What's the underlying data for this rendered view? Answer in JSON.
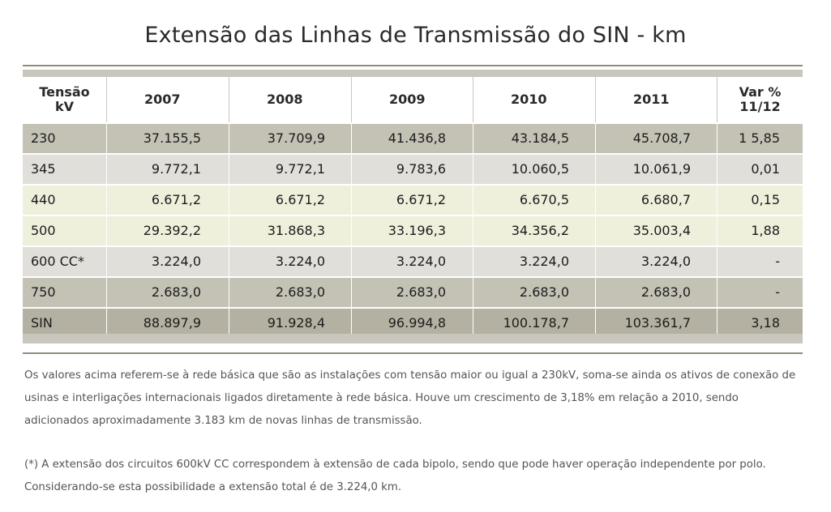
{
  "title": "Extensão das Linhas de Transmissão do SIN - km",
  "table": {
    "headers": [
      "Tensão kV",
      "2007",
      "2008",
      "2009",
      "2010",
      "2011",
      "Var % 11/12"
    ],
    "header_first": [
      "Tensão",
      "kV"
    ],
    "header_last": [
      "Var %",
      "11/12"
    ],
    "rows": [
      [
        "230",
        "37.155,5",
        "37.709,9",
        "41.436,8",
        "43.184,5",
        "45.708,7",
        "1 5,85"
      ],
      [
        "345",
        "9.772,1",
        "9.772,1",
        "9.783,6",
        "10.060,5",
        "10.061,9",
        "0,01"
      ],
      [
        "440",
        "6.671,2",
        "6.671,2",
        "6.671,2",
        "6.670,5",
        "6.680,7",
        "0,15"
      ],
      [
        "500",
        "29.392,2",
        "31.868,3",
        "33.196,3",
        "34.356,2",
        "35.003,4",
        "1,88"
      ],
      [
        "600 CC*",
        "3.224,0",
        "3.224,0",
        "3.224,0",
        "3.224,0",
        "3.224,0",
        "-"
      ],
      [
        "750",
        "2.683,0",
        "2.683,0",
        "2.683,0",
        "2.683,0",
        "2.683,0",
        "-"
      ],
      [
        "SIN",
        "88.897,9",
        "91.928,4",
        "96.994,8",
        "100.178,7",
        "103.361,7",
        "3,18"
      ]
    ]
  },
  "notes": {
    "paragraph1": "Os valores acima referem-se à rede básica que são as instalações com tensão maior ou igual a 230kV, soma-se ainda os ativos de conexão de usinas e interligações internacionais ligados diretamente à rede básica. Houve um crescimento de 3,18% em relação a 2010, sendo adicionados aproximadamente 3.183 km de novas linhas de transmissão.",
    "paragraph2": "(*) A extensão dos circuitos 600kV CC correspondem à extensão de cada bipolo, sendo que pode haver operação independente por polo. Considerando-se esta possibilidade a extensão total é de 3.224,0 km."
  },
  "colors": {
    "row_dark": "#c4c2b5",
    "row_light": "#e0dfd9",
    "row_cream": "#eef0dc",
    "row_total": "#b4b1a2",
    "rule": "#8f8c7c"
  }
}
